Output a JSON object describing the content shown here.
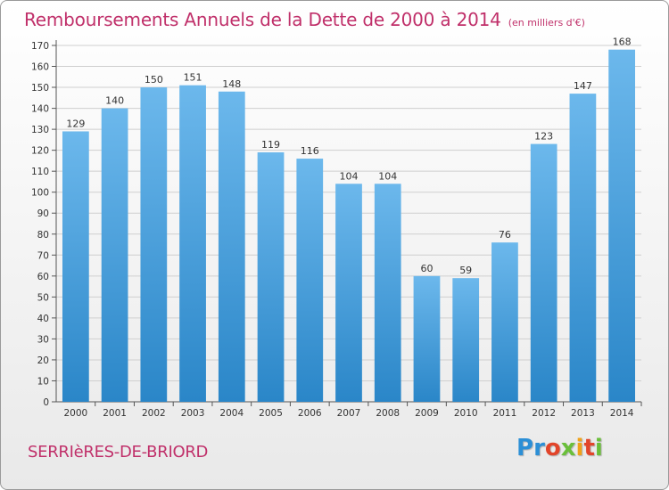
{
  "title": "Remboursements Annuels de la Dette de 2000 à 2014",
  "unit_note": "(en milliers d'€)",
  "city": "SERRIèRES-DE-BRIORD",
  "logo": {
    "letters": [
      "P",
      "r",
      "o",
      "x",
      "i",
      "t",
      "i"
    ],
    "colors": [
      "#2c8fd6",
      "#2c8fd6",
      "#e2452a",
      "#6abf3a",
      "#f0a21a",
      "#e2452a",
      "#6abf3a"
    ]
  },
  "colors": {
    "title": "#c0306a",
    "bar_light": "#6cb8ec",
    "bar_dark": "#2a86c8"
  },
  "chart_data": {
    "type": "bar",
    "title": "Remboursements Annuels de la Dette de 2000 à 2014",
    "xlabel": "",
    "ylabel": "",
    "categories": [
      "2000",
      "2001",
      "2002",
      "2003",
      "2004",
      "2005",
      "2006",
      "2007",
      "2008",
      "2009",
      "2010",
      "2011",
      "2012",
      "2013",
      "2014"
    ],
    "values": [
      129,
      140,
      150,
      151,
      148,
      119,
      116,
      104,
      104,
      60,
      59,
      76,
      123,
      147,
      168
    ],
    "ylim": [
      0,
      170
    ],
    "yticks": [
      0,
      10,
      20,
      30,
      40,
      50,
      60,
      70,
      80,
      90,
      100,
      110,
      120,
      130,
      140,
      150,
      160,
      170
    ],
    "grid": true
  }
}
